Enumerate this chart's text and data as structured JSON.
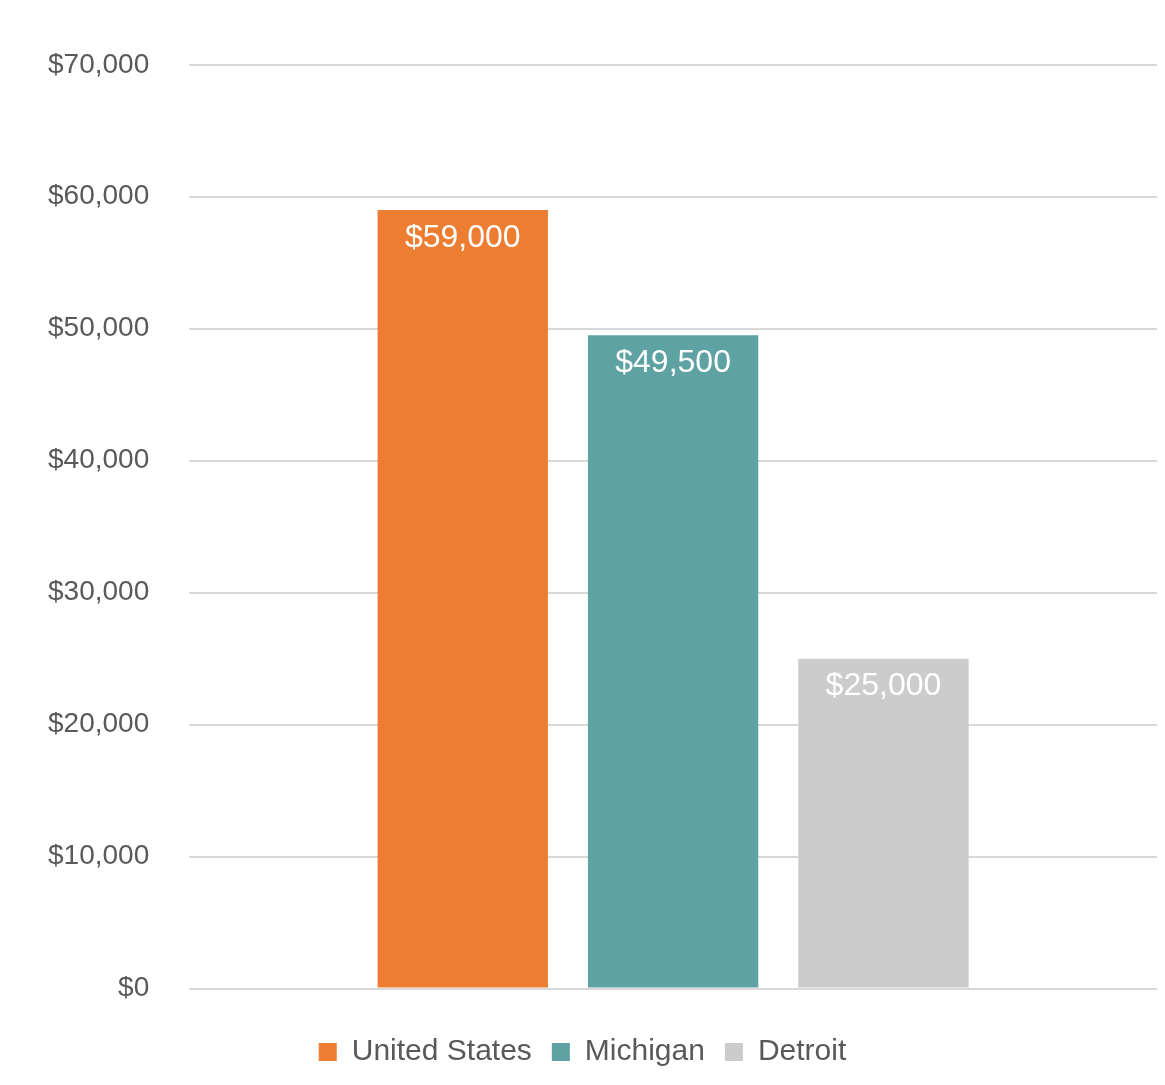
{
  "chart_data": {
    "type": "bar",
    "categories": [
      null
    ],
    "series": [
      {
        "name": "United States",
        "color": "#ed7d31",
        "values": [
          59000
        ],
        "value_labels": [
          "$59,000"
        ]
      },
      {
        "name": "Michigan",
        "color": "#5fa2a3",
        "values": [
          49500
        ],
        "value_labels": [
          "$49,500"
        ]
      },
      {
        "name": "Detroit",
        "color": "#cccccc",
        "values": [
          25000
        ],
        "value_labels": [
          "$25,000"
        ]
      }
    ],
    "ylim": [
      0,
      70000
    ],
    "yticks": [
      {
        "value": 0,
        "label": "$0"
      },
      {
        "value": 10000,
        "label": "$10,000"
      },
      {
        "value": 20000,
        "label": "$20,000"
      },
      {
        "value": 30000,
        "label": "$30,000"
      },
      {
        "value": 40000,
        "label": "$40,000"
      },
      {
        "value": 50000,
        "label": "$50,000"
      },
      {
        "value": 60000,
        "label": "$60,000"
      },
      {
        "value": 70000,
        "label": "$70,000"
      }
    ],
    "grid": "y",
    "legend": "bottom"
  }
}
